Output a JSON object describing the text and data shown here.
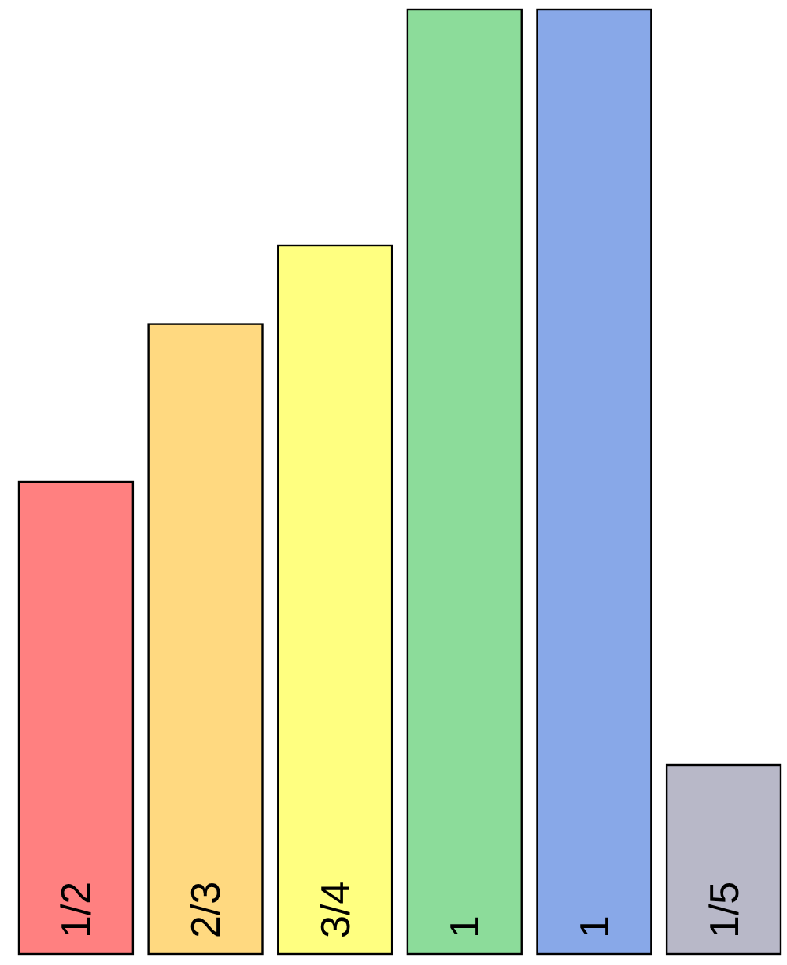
{
  "chart_data": {
    "type": "bar",
    "categories": [
      null,
      null,
      null,
      null,
      null,
      null
    ],
    "values": [
      0.5,
      0.667,
      0.75,
      1,
      1,
      0.2
    ],
    "value_labels": [
      "1/2",
      "2/3",
      "3/4",
      "1",
      "1",
      "1/5"
    ],
    "colors": [
      "#ff8080",
      "#ffd980",
      "#ffff80",
      "#8cdc9a",
      "#88a8e8",
      "#b8b8c8"
    ]
  }
}
